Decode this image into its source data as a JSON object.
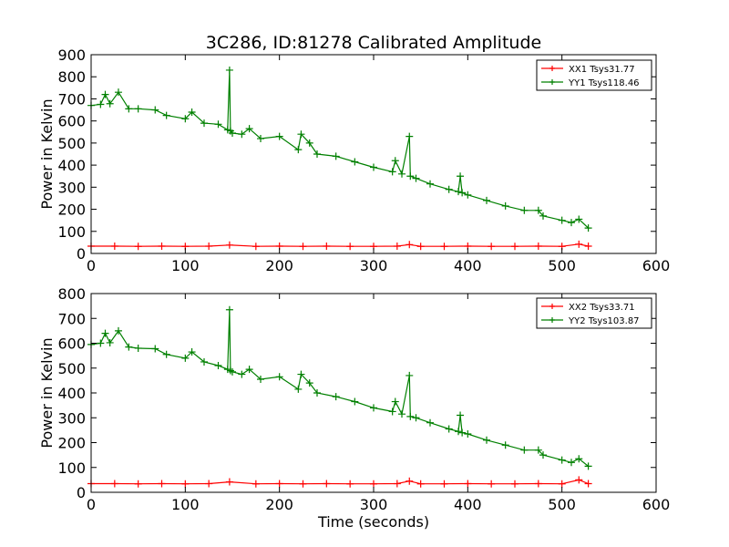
{
  "title": "3C286, ID:81278 Calibrated Amplitude",
  "chart_data": [
    {
      "type": "line",
      "title": "3C286, ID:81278 Calibrated Amplitude",
      "xlabel": "",
      "ylabel": "Power in Kelvin",
      "xlim": [
        0,
        600
      ],
      "ylim": [
        0,
        900
      ],
      "xticks": [
        "0",
        "100",
        "200",
        "300",
        "400",
        "500",
        "600"
      ],
      "yticks": [
        "0",
        "100",
        "200",
        "300",
        "400",
        "500",
        "600",
        "700",
        "800",
        "900"
      ],
      "legend_position": "top-right",
      "grid": false,
      "series": [
        {
          "name": "XX1 Tsys31.77",
          "color": "#ff0000",
          "marker": "+",
          "x": [
            0,
            25,
            50,
            75,
            100,
            125,
            147,
            175,
            200,
            225,
            250,
            275,
            300,
            325,
            338,
            350,
            375,
            400,
            425,
            450,
            475,
            500,
            518,
            528
          ],
          "y": [
            33,
            33,
            32,
            33,
            32,
            33,
            38,
            32,
            33,
            32,
            33,
            32,
            32,
            33,
            40,
            32,
            32,
            33,
            32,
            32,
            33,
            32,
            42,
            33
          ]
        },
        {
          "name": "YY1 Tsys118.46",
          "color": "#008000",
          "marker": "+",
          "x": [
            0,
            10,
            15,
            20,
            29,
            40,
            50,
            68,
            80,
            100,
            107,
            120,
            135,
            145,
            147,
            148,
            150,
            160,
            168,
            180,
            200,
            220,
            223,
            232,
            240,
            260,
            280,
            300,
            320,
            323,
            330,
            338,
            339,
            345,
            360,
            380,
            390,
            392,
            394,
            400,
            420,
            440,
            460,
            475,
            480,
            500,
            510,
            518,
            528
          ],
          "y": [
            670,
            675,
            720,
            678,
            730,
            655,
            655,
            650,
            625,
            610,
            640,
            590,
            585,
            560,
            830,
            555,
            545,
            540,
            565,
            520,
            530,
            470,
            540,
            500,
            450,
            440,
            415,
            390,
            370,
            420,
            360,
            530,
            350,
            340,
            315,
            290,
            280,
            350,
            275,
            265,
            240,
            215,
            195,
            195,
            170,
            150,
            140,
            155,
            115
          ]
        }
      ]
    },
    {
      "type": "line",
      "title": "",
      "xlabel": "Time (seconds)",
      "ylabel": "Power in Kelvin",
      "xlim": [
        0,
        600
      ],
      "ylim": [
        0,
        800
      ],
      "xticks": [
        "0",
        "100",
        "200",
        "300",
        "400",
        "500",
        "600"
      ],
      "yticks": [
        "0",
        "100",
        "200",
        "300",
        "400",
        "500",
        "600",
        "700",
        "800"
      ],
      "legend_position": "top-right",
      "grid": false,
      "series": [
        {
          "name": "XX2 Tsys33.71",
          "color": "#ff0000",
          "marker": "+",
          "x": [
            0,
            25,
            50,
            75,
            100,
            125,
            147,
            175,
            200,
            225,
            250,
            275,
            300,
            325,
            338,
            350,
            375,
            400,
            425,
            450,
            475,
            500,
            518,
            528
          ],
          "y": [
            35,
            35,
            34,
            35,
            34,
            35,
            42,
            34,
            35,
            34,
            35,
            34,
            34,
            35,
            45,
            34,
            34,
            35,
            34,
            34,
            35,
            34,
            50,
            35
          ]
        },
        {
          "name": "YY2 Tsys103.87",
          "color": "#008000",
          "marker": "+",
          "x": [
            0,
            10,
            15,
            20,
            29,
            40,
            50,
            68,
            80,
            100,
            107,
            120,
            135,
            145,
            147,
            148,
            150,
            160,
            168,
            180,
            200,
            220,
            223,
            232,
            240,
            260,
            280,
            300,
            320,
            323,
            330,
            338,
            339,
            345,
            360,
            380,
            390,
            392,
            394,
            400,
            420,
            440,
            460,
            475,
            480,
            500,
            510,
            518,
            528
          ],
          "y": [
            595,
            600,
            640,
            602,
            650,
            585,
            580,
            578,
            555,
            540,
            565,
            525,
            510,
            495,
            735,
            490,
            485,
            475,
            495,
            455,
            465,
            415,
            475,
            440,
            400,
            385,
            365,
            340,
            325,
            365,
            315,
            470,
            305,
            300,
            280,
            255,
            245,
            310,
            240,
            235,
            210,
            190,
            170,
            170,
            150,
            130,
            120,
            135,
            105
          ]
        }
      ]
    }
  ]
}
